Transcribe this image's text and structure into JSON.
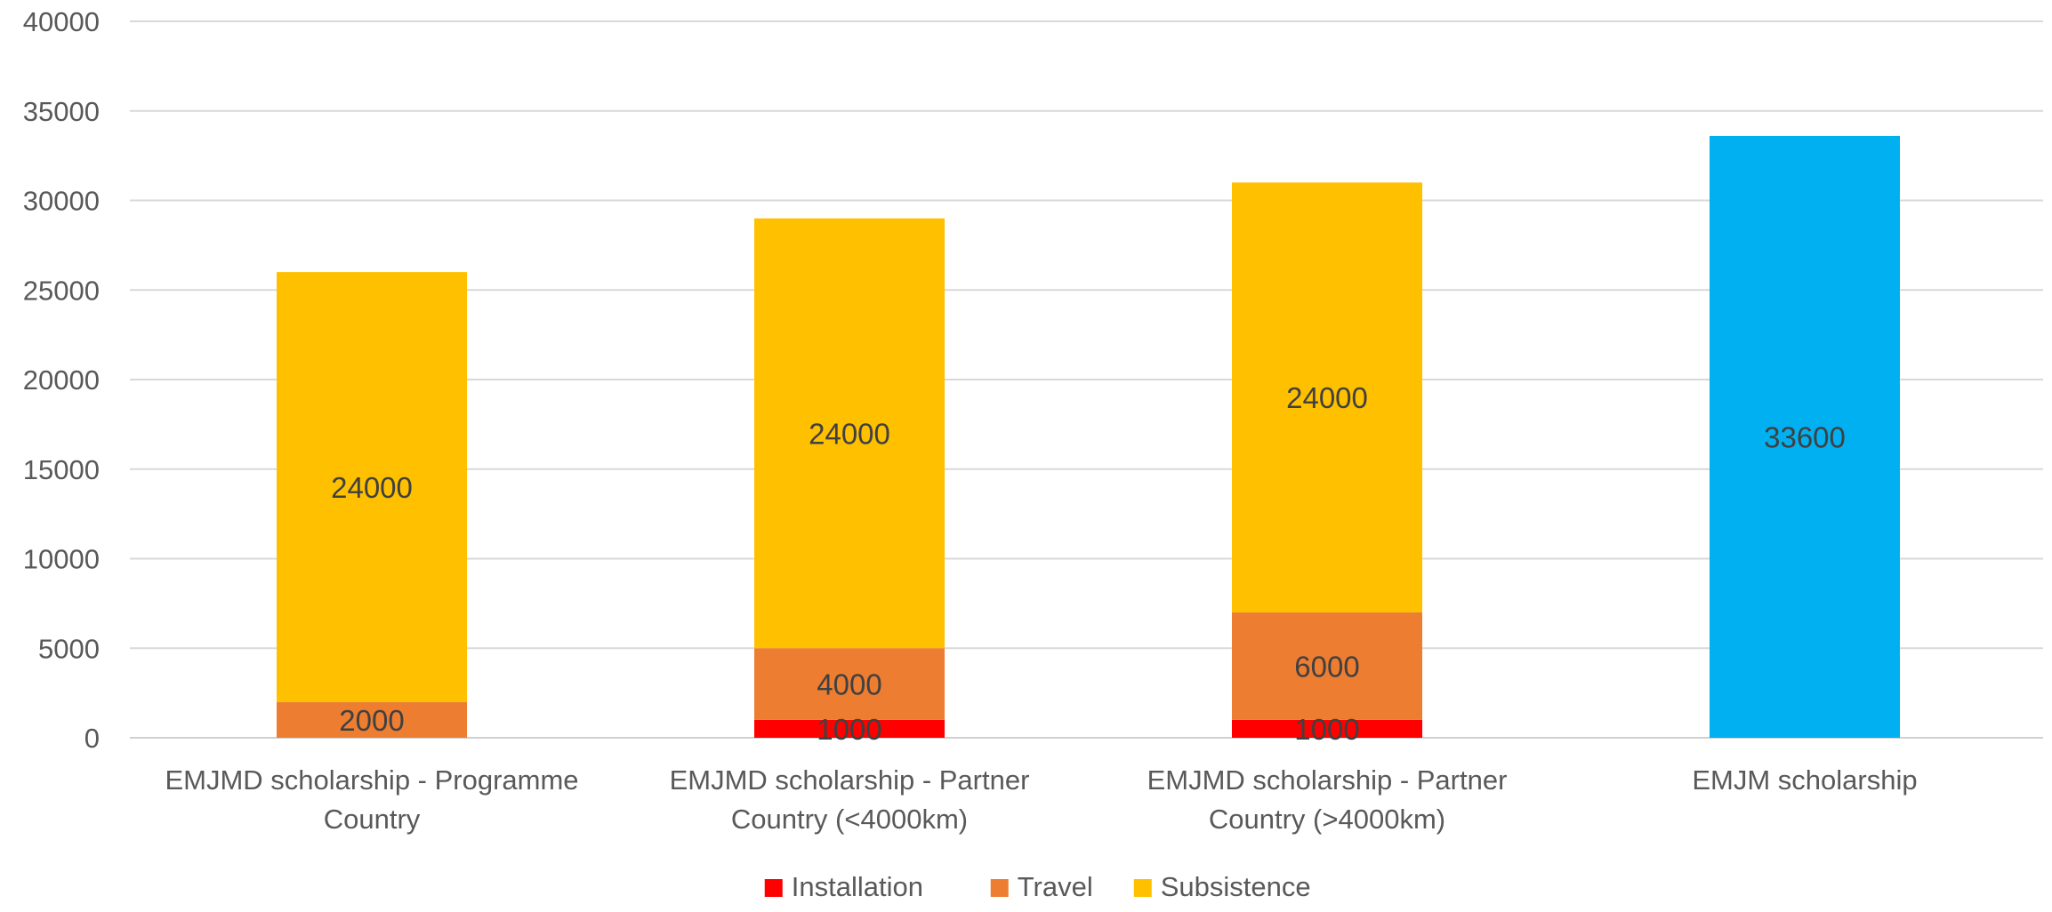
{
  "chart_data": {
    "type": "bar",
    "stacked": true,
    "title": "",
    "xlabel": "",
    "ylabel": "",
    "ylim": [
      0,
      40000
    ],
    "yticks": [
      0,
      5000,
      10000,
      15000,
      20000,
      25000,
      30000,
      35000,
      40000
    ],
    "grid": true,
    "legend_position": "bottom",
    "categories": [
      [
        "EMJMD scholarship - Programme",
        "Country"
      ],
      [
        "EMJMD scholarship - Partner",
        "Country (<4000km)"
      ],
      [
        "EMJMD scholarship - Partner",
        "Country (>4000km)"
      ],
      [
        "EMJM scholarship"
      ]
    ],
    "series": [
      {
        "name": "Installation",
        "color": "#ff0000",
        "values": [
          0,
          1000,
          1000,
          0
        ]
      },
      {
        "name": "Travel",
        "color": "#ed7d31",
        "values": [
          2000,
          4000,
          6000,
          0
        ]
      },
      {
        "name": "Subsistence",
        "color": "#ffc000",
        "values": [
          24000,
          24000,
          24000,
          0
        ]
      },
      {
        "name": "",
        "color": "#00b0f0",
        "values": [
          0,
          0,
          0,
          33600
        ],
        "in_legend": false
      }
    ],
    "legend": [
      "Installation",
      "Travel",
      "Subsistence"
    ]
  }
}
